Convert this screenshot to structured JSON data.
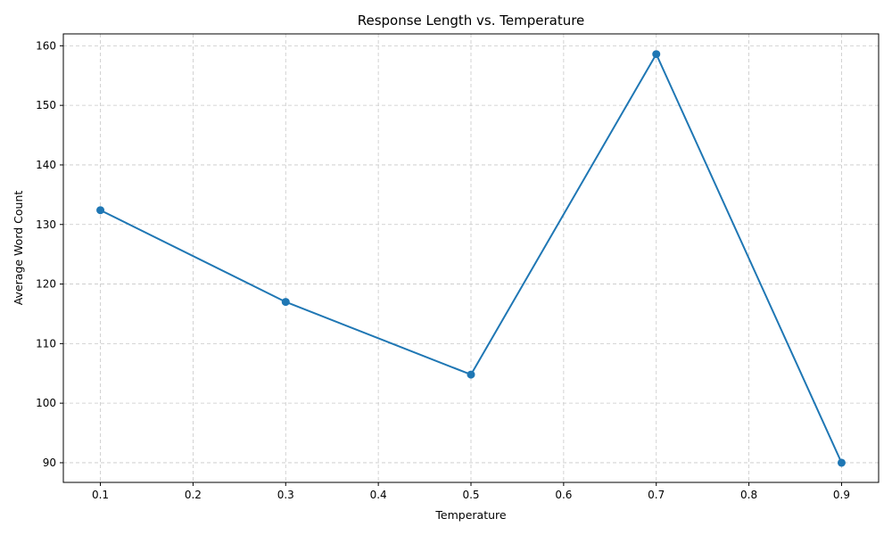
{
  "chart_data": {
    "type": "line",
    "title": "Response Length vs. Temperature",
    "xlabel": "Temperature",
    "ylabel": "Average Word Count",
    "x": [
      0.1,
      0.3,
      0.5,
      0.7,
      0.9
    ],
    "series": [
      {
        "values": [
          132.4,
          117.0,
          104.8,
          158.6,
          90.0
        ],
        "color": "#1f77b4",
        "marker": "circle"
      }
    ],
    "xlim": [
      0.06,
      0.94
    ],
    "ylim": [
      86.7,
      162.0
    ],
    "xticks": [
      0.1,
      0.2,
      0.3,
      0.4,
      0.5,
      0.6,
      0.7,
      0.8,
      0.9
    ],
    "xtick_labels": [
      "0.1",
      "0.2",
      "0.3",
      "0.4",
      "0.5",
      "0.6",
      "0.7",
      "0.8",
      "0.9"
    ],
    "yticks": [
      90,
      100,
      110,
      120,
      130,
      140,
      150,
      160
    ],
    "ytick_labels": [
      "90",
      "100",
      "110",
      "120",
      "130",
      "140",
      "150",
      "160"
    ],
    "grid": true,
    "grid_style": "dashed",
    "grid_color": "#c8c8c8",
    "legend": false
  }
}
